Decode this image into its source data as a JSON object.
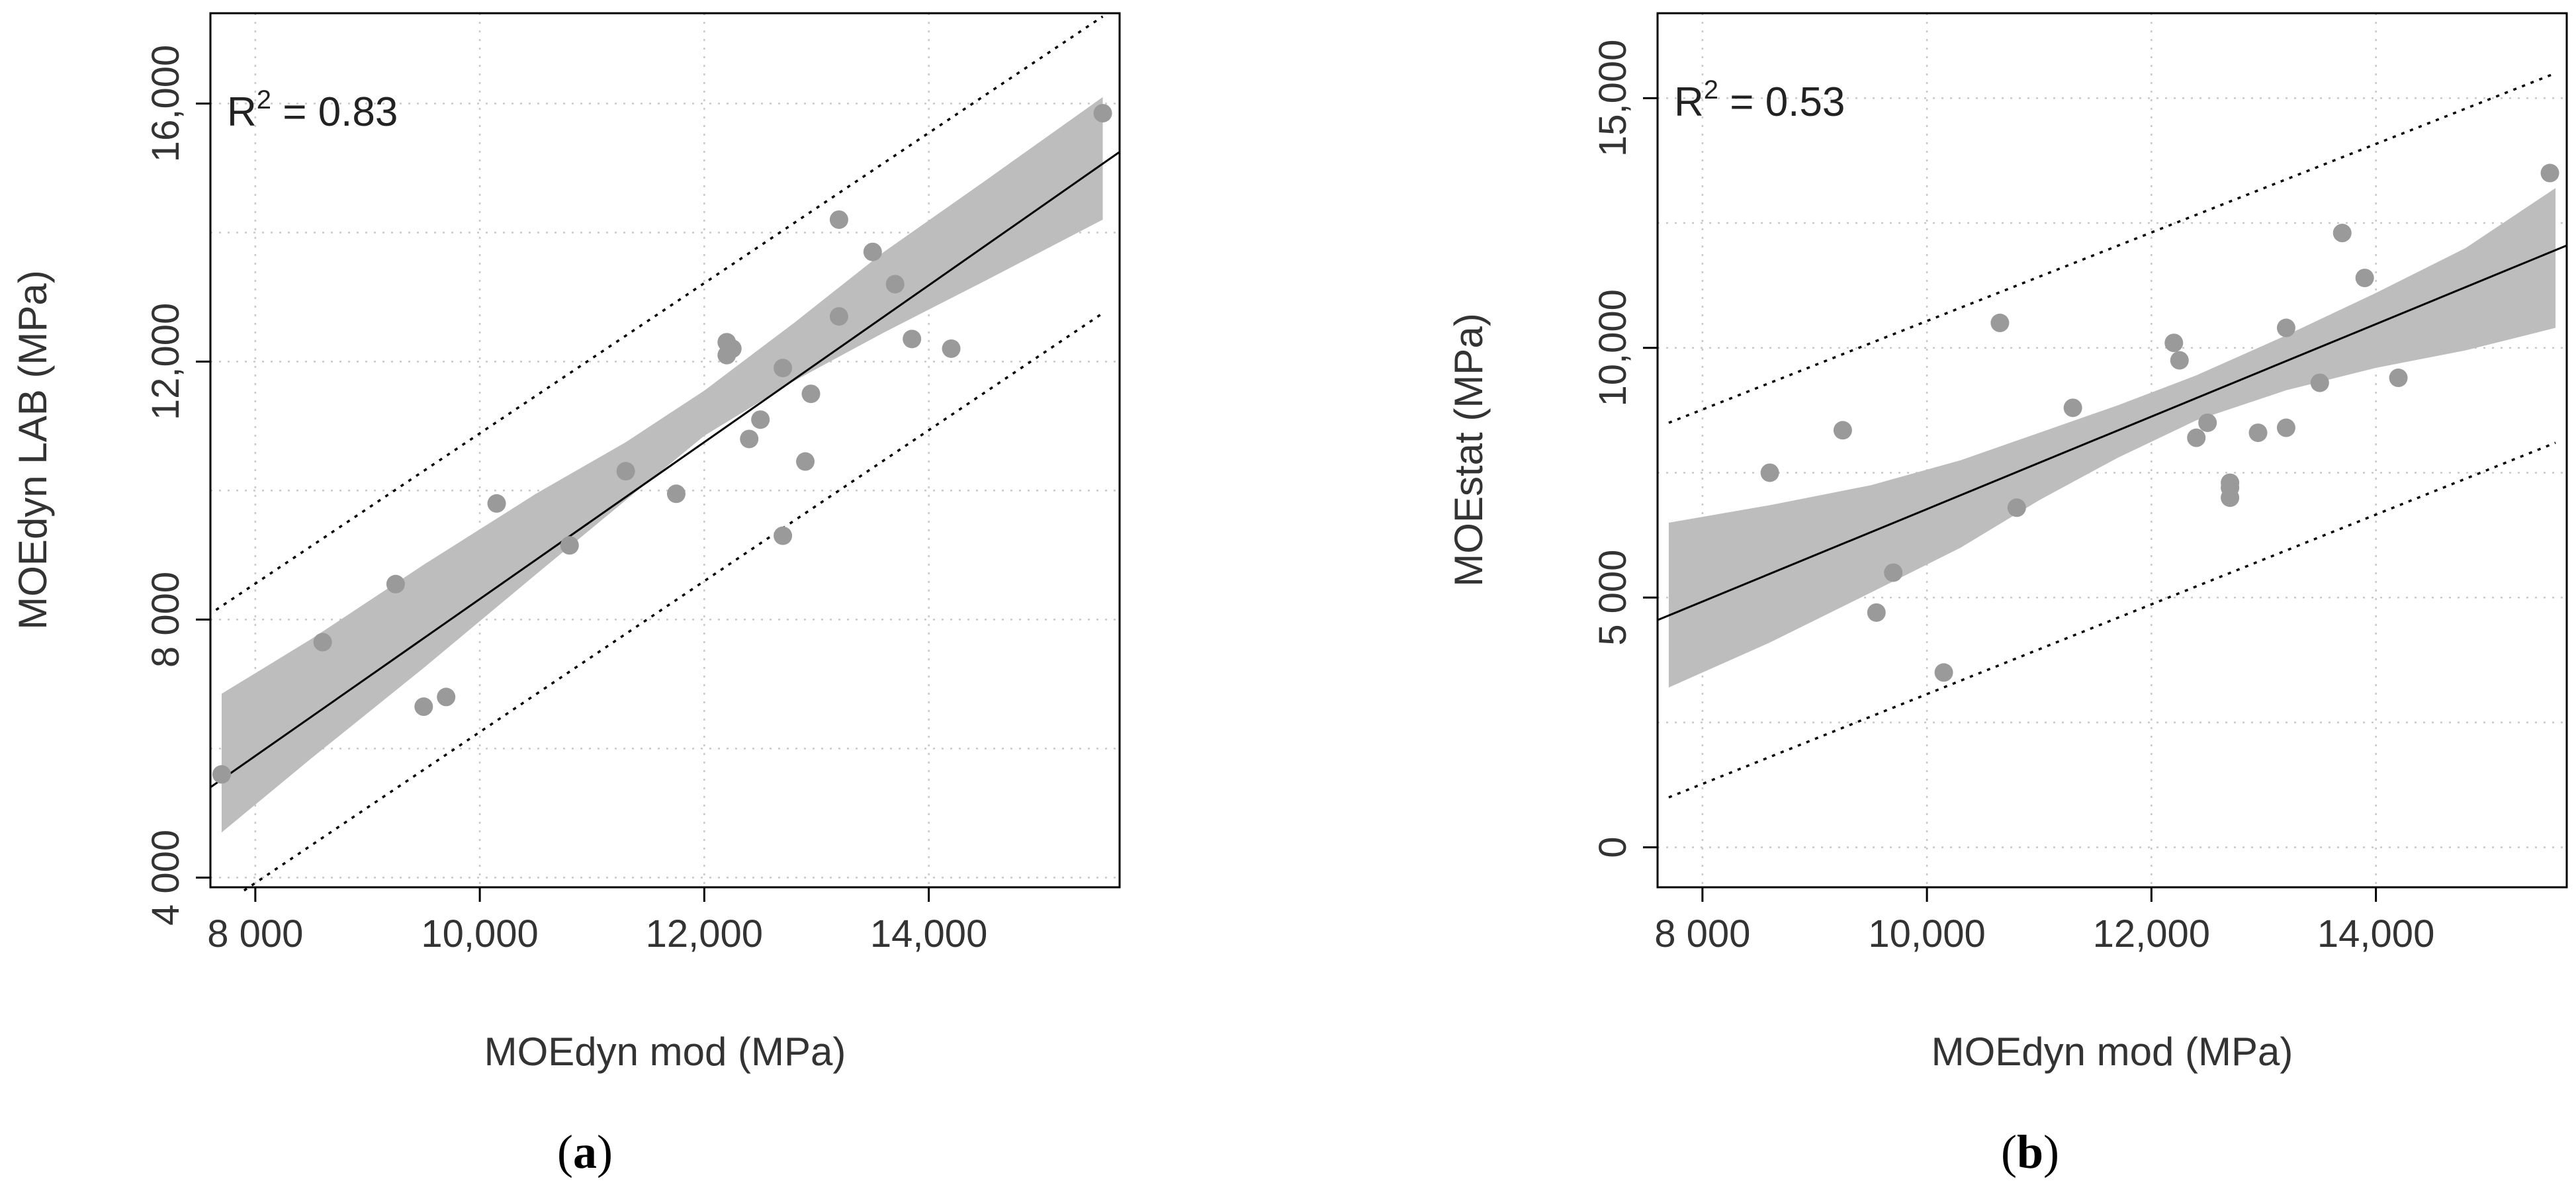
{
  "chart_data": [
    {
      "type": "scatter",
      "panel_label": "a",
      "caption_open": "(",
      "caption_close": ")",
      "xlabel": "MOEdyn mod (MPa)",
      "ylabel": "MOEdyn LAB (MPa)",
      "r2_prefix": "R",
      "r2_exp": "2",
      "r2_value": " = 0.83",
      "xlim": [
        7600,
        15700
      ],
      "ylim": [
        3850,
        17400
      ],
      "xticks": [
        8000,
        10000,
        12000,
        14000
      ],
      "xtick_labels": [
        "8 000",
        "10,000",
        "12,000",
        "14,000"
      ],
      "yticks": [
        4000,
        8000,
        12000,
        16000
      ],
      "ytick_labels": [
        "4 000",
        "8 000",
        "12,000",
        "16,000"
      ],
      "xgrid": [
        8000,
        10000,
        12000,
        14000
      ],
      "ygrid": [
        4000,
        6000,
        8000,
        10000,
        12000,
        14000,
        16000
      ],
      "grid": true,
      "regression": {
        "x": [
          7600,
          15700
        ],
        "y": [
          5400,
          15250
        ]
      },
      "prediction_upper": {
        "x": [
          7650,
          15550
        ],
        "y": [
          8150,
          17350
        ]
      },
      "prediction_lower": {
        "x": [
          7900,
          15550
        ],
        "y": [
          3800,
          12750
        ]
      },
      "confidence_band": {
        "x": [
          7700,
          8500,
          9500,
          10500,
          11300,
          12000,
          12800,
          13600,
          14500,
          15550
        ],
        "upper": [
          6850,
          7700,
          8850,
          9950,
          10750,
          11550,
          12600,
          13700,
          14800,
          16100
        ],
        "lower": [
          4700,
          5850,
          7250,
          8700,
          9850,
          10850,
          11700,
          12450,
          13250,
          14200
        ]
      },
      "points": {
        "x": [
          7700,
          8600,
          9250,
          9500,
          9700,
          10150,
          10800,
          11300,
          11750,
          12200,
          12200,
          12250,
          12400,
          12500,
          12700,
          12700,
          12900,
          12950,
          13200,
          13200,
          13500,
          13700,
          13850,
          14200,
          15550
        ],
        "y": [
          5600,
          7650,
          8550,
          6650,
          6800,
          9800,
          9150,
          10300,
          9950,
          12100,
          12300,
          12200,
          10800,
          11100,
          9300,
          11900,
          10450,
          11500,
          14200,
          12700,
          13700,
          13200,
          12350,
          12200,
          15850
        ]
      }
    },
    {
      "type": "scatter",
      "panel_label": "b",
      "caption_open": "(",
      "caption_close": ")",
      "xlabel": "MOEdyn mod (MPa)",
      "ylabel": "MOEstat (MPa)",
      "r2_prefix": "R",
      "r2_exp": "2",
      "r2_value": " = 0.53",
      "xlim": [
        7600,
        15700
      ],
      "ylim": [
        -800,
        16700
      ],
      "xticks": [
        8000,
        10000,
        12000,
        14000
      ],
      "xtick_labels": [
        "8 000",
        "10,000",
        "12,000",
        "14,000"
      ],
      "yticks": [
        0,
        5000,
        10000,
        15000
      ],
      "ytick_labels": [
        "0",
        "5 000",
        "10,000",
        "15,000"
      ],
      "xgrid": [
        8000,
        10000,
        12000,
        14000
      ],
      "ygrid": [
        0,
        2500,
        5000,
        7500,
        10000,
        12500,
        15000
      ],
      "grid": true,
      "regression": {
        "x": [
          7600,
          15700
        ],
        "y": [
          4550,
          12050
        ]
      },
      "prediction_upper": {
        "x": [
          7700,
          15600
        ],
        "y": [
          8500,
          15500
        ]
      },
      "prediction_lower": {
        "x": [
          7700,
          15600
        ],
        "y": [
          1000,
          8100
        ]
      },
      "confidence_band": {
        "x": [
          7700,
          8600,
          9500,
          10300,
          11000,
          11700,
          12400,
          13200,
          14000,
          14800,
          15600
        ],
        "upper": [
          6500,
          6850,
          7250,
          7750,
          8300,
          8850,
          9450,
          10250,
          11100,
          12000,
          13200
        ],
        "lower": [
          3200,
          4100,
          5100,
          6000,
          6950,
          7800,
          8550,
          9150,
          9600,
          9950,
          10400
        ]
      },
      "points": {
        "x": [
          8600,
          9250,
          9550,
          9700,
          10150,
          10650,
          10800,
          11300,
          12200,
          12250,
          12400,
          12500,
          12700,
          12700,
          12700,
          12950,
          13200,
          13200,
          13500,
          13700,
          13900,
          14200,
          15550
        ],
        "y": [
          7500,
          8350,
          4700,
          5500,
          3500,
          10500,
          6800,
          8800,
          10100,
          9750,
          8200,
          8500,
          7000,
          7300,
          7200,
          8300,
          8400,
          10400,
          9300,
          12300,
          11400,
          9400,
          13500
        ]
      }
    }
  ]
}
